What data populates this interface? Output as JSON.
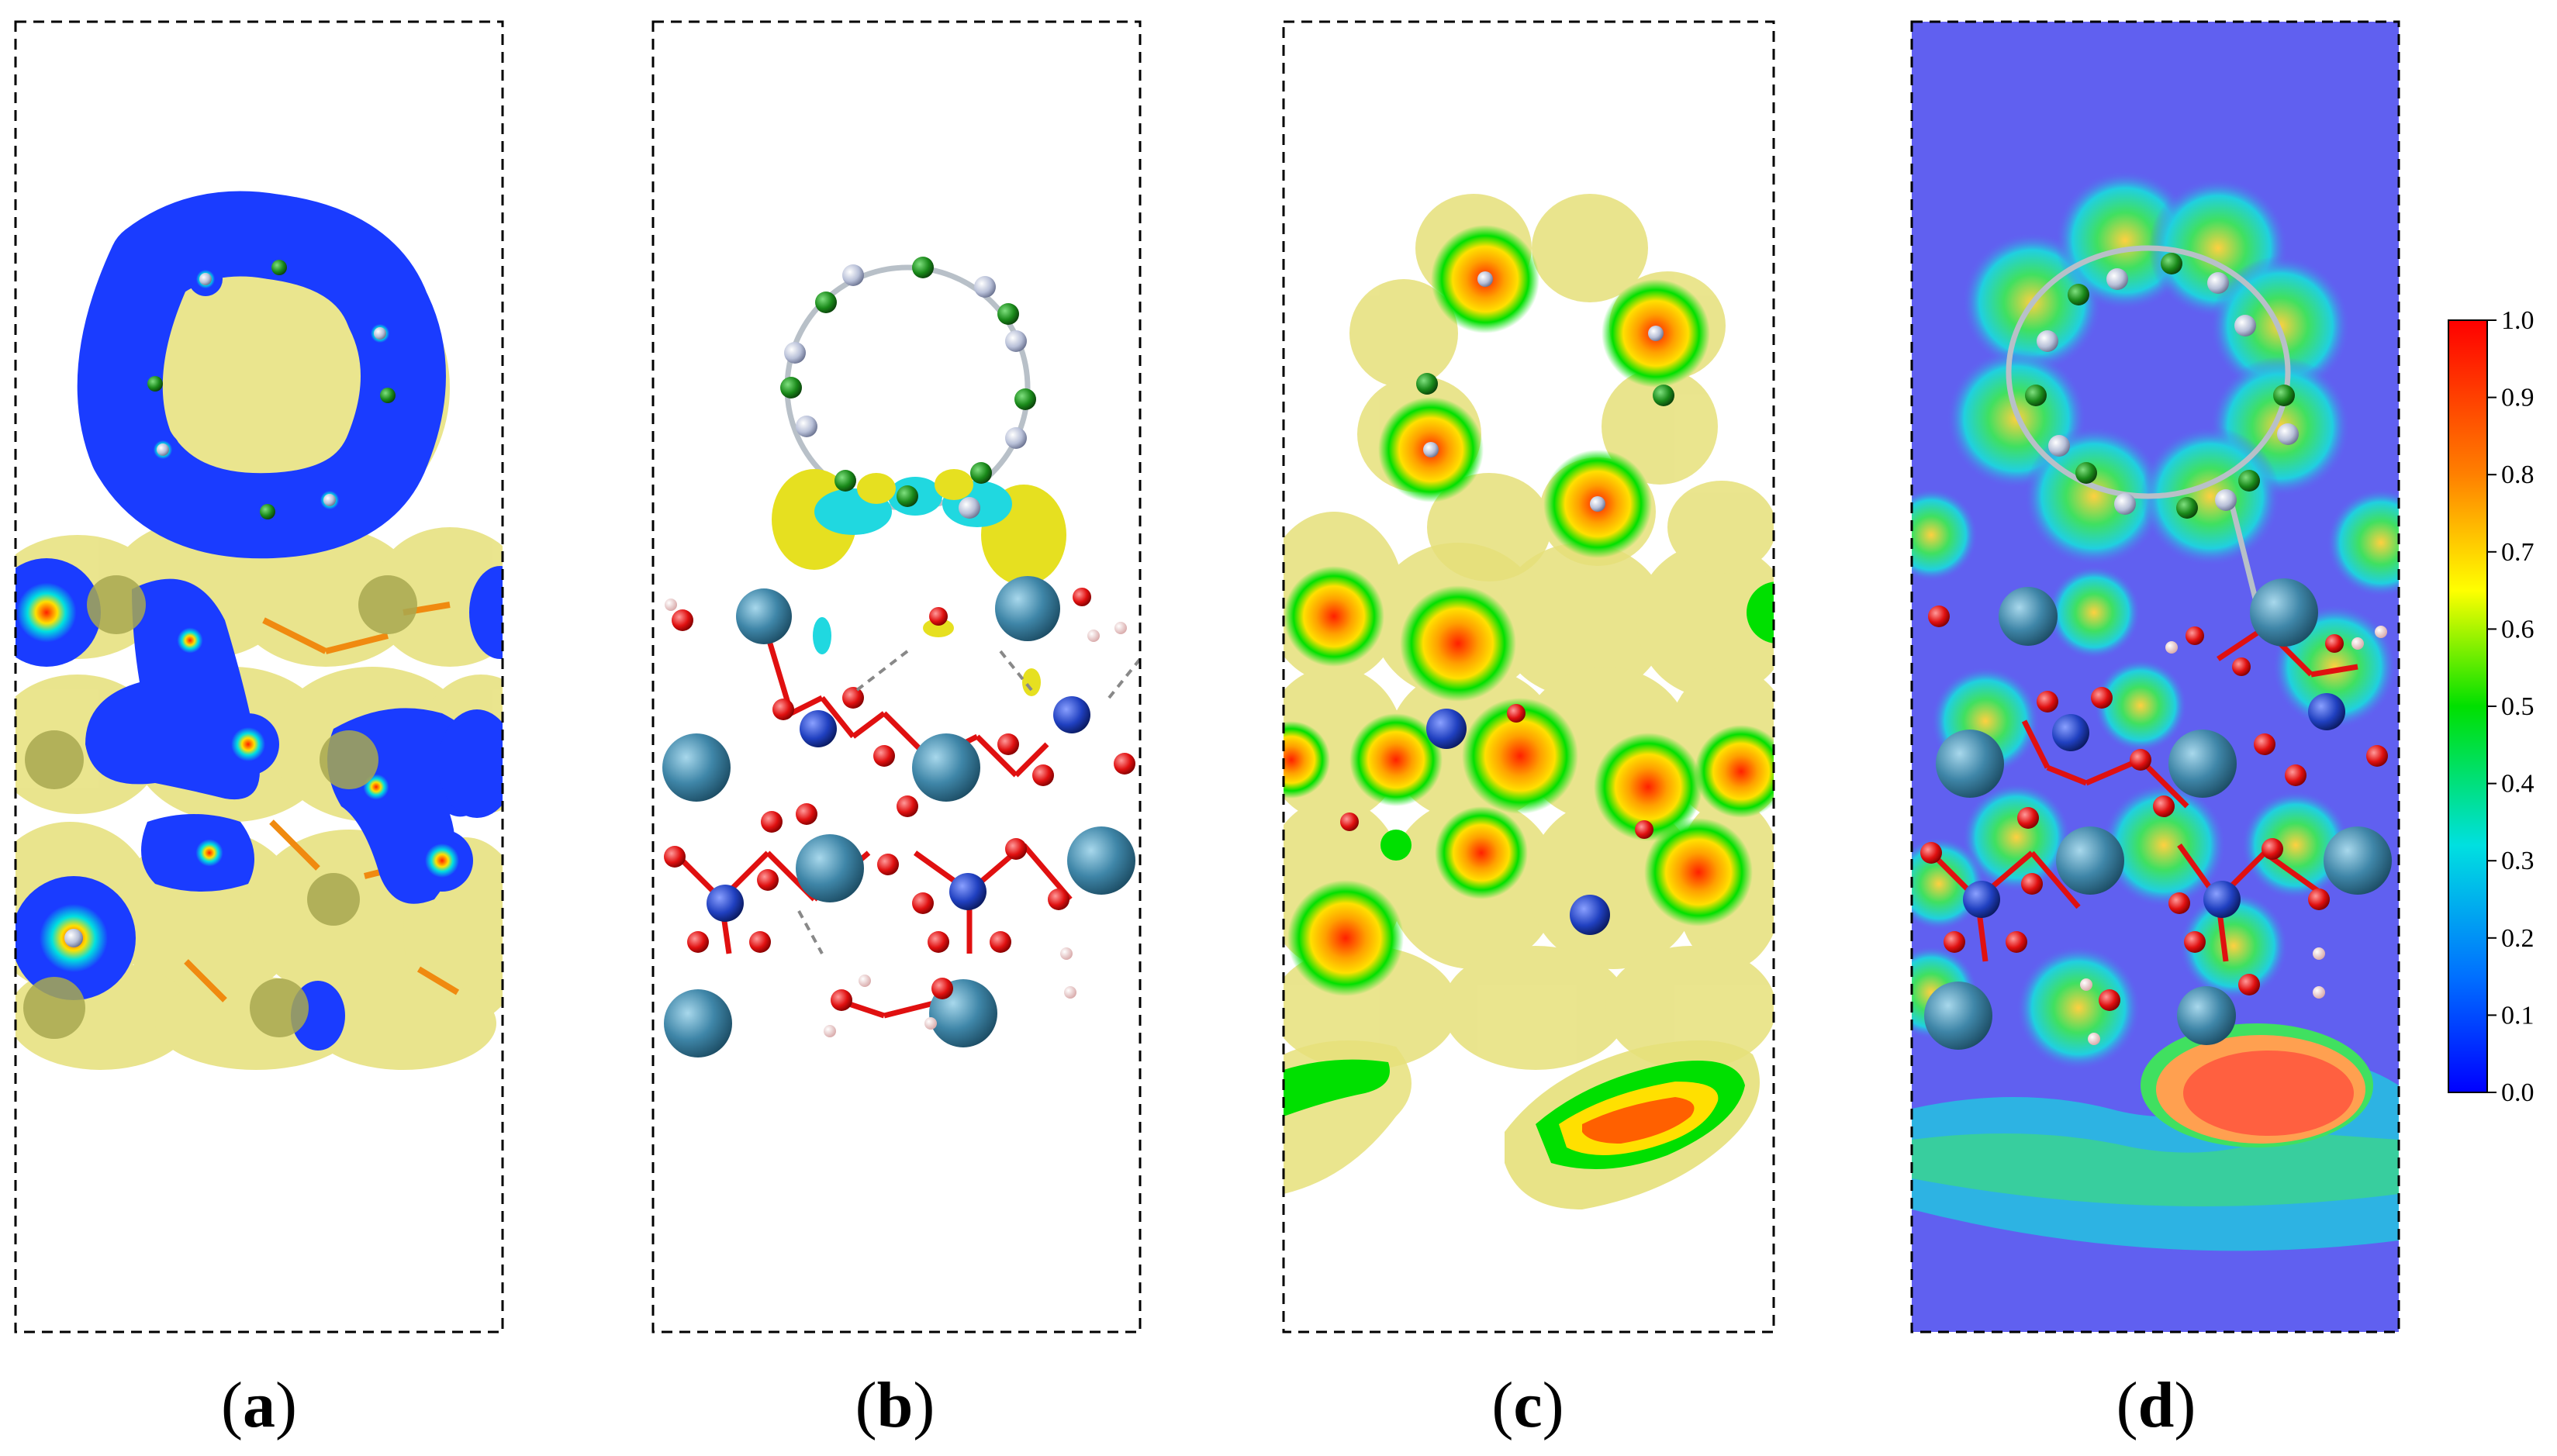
{
  "figure": {
    "panels": [
      {
        "id": "a",
        "label_open": "(",
        "label_letter": "a",
        "label_close": ")",
        "description": ""
      },
      {
        "id": "b",
        "label_open": "(",
        "label_letter": "b",
        "label_close": ")",
        "description": ""
      },
      {
        "id": "c",
        "label_open": "(",
        "label_letter": "c",
        "label_close": ")",
        "description": ""
      },
      {
        "id": "d",
        "label_open": "(",
        "label_letter": "d",
        "label_close": ")",
        "description": ""
      }
    ],
    "colorbar": {
      "ticks": [
        "1.0",
        "0.9",
        "0.8",
        "0.7",
        "0.6",
        "0.5",
        "0.4",
        "0.3",
        "0.2",
        "0.1",
        "0.0"
      ],
      "gradient": [
        "#ff0000",
        "#ff7f00",
        "#ffff00",
        "#00e000",
        "#00e0e0",
        "#0060ff",
        "#0000ff"
      ]
    },
    "colors": {
      "isosurface_yellow": "#e6e07a",
      "charge_blue": "#1a3cff",
      "carbon": "#1a8a1a",
      "nitrogen": "#b8c0d8",
      "oxygen": "#e01010",
      "metal": "#3f86a8",
      "dopant": "#2040c0",
      "hydrogen": "#f0c8c8",
      "bond_orange": "#f08a10",
      "elf_background": "#6060f0"
    }
  }
}
